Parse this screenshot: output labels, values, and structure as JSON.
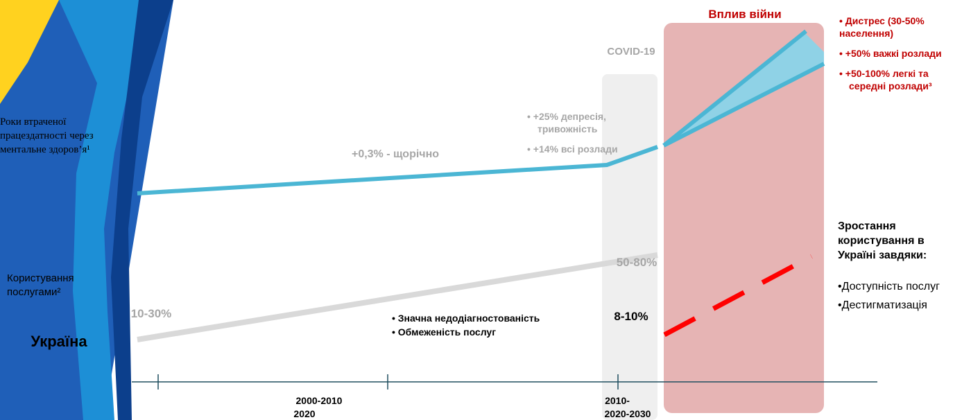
{
  "war_impact": {
    "title": "Вплив війни",
    "bullets": [
      "• Дистрес (30-50%",
      "населення)",
      "• +50% важкі розлади",
      "• +50-100% легкі та",
      "середні розлади³"
    ]
  },
  "covid": {
    "title": "COVID-19",
    "bullets": [
      "• +25% депресія,",
      "тривожність",
      "• +14% всі розлади"
    ]
  },
  "lost_years": {
    "label": [
      "Роки втраченої",
      "працездатності через",
      "ментальне здоров’я¹"
    ],
    "trend": "+0,3% - щорічно"
  },
  "service_use": {
    "label": [
      "Користування",
      "послугами²"
    ],
    "start": "10-30%",
    "end": "50-80%",
    "ukraine_value": "8-10%",
    "notes": [
      "•  Значна недодіагностованість",
      "•  Обмеженість послуг"
    ]
  },
  "country": "Україна",
  "growth": {
    "title": [
      "Зростання",
      "користування в",
      "Україні завдяки:"
    ],
    "reasons": [
      "•Доступність послуг",
      "•Дестигматизація"
    ]
  },
  "timeline": {
    "labels": [
      [
        "2000-2010",
        "2020"
      ],
      [
        "2010-",
        "2020-2030"
      ]
    ]
  }
}
